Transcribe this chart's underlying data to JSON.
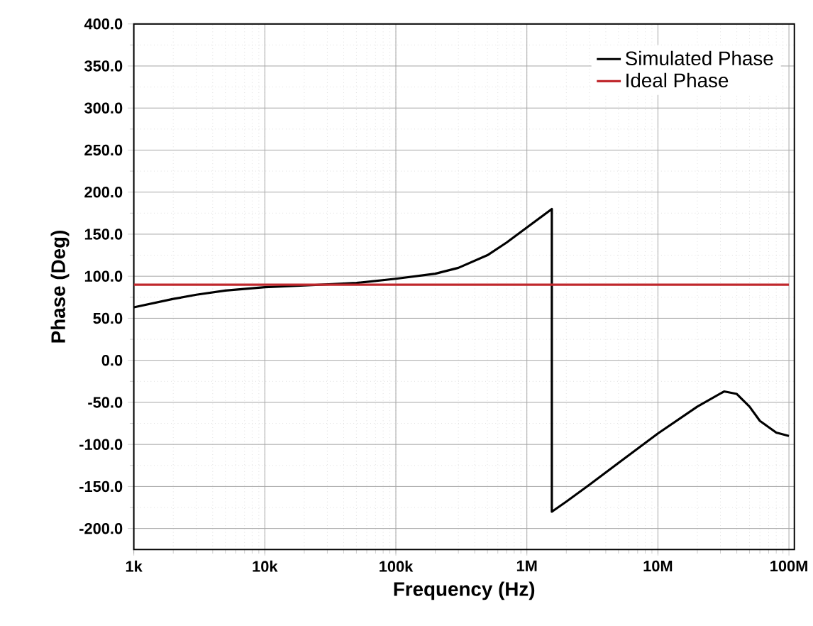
{
  "chart_data": {
    "type": "line",
    "xlabel": "Frequency (Hz)",
    "ylabel": "Phase (Deg)",
    "log": "x",
    "xlim": [
      1000,
      110000000
    ],
    "ylim": [
      -225,
      400
    ],
    "xticks": [
      {
        "value": 1000,
        "label": "1k"
      },
      {
        "value": 10000,
        "label": "10k"
      },
      {
        "value": 100000,
        "label": "100k"
      },
      {
        "value": 1000000,
        "label": "1M"
      },
      {
        "value": 10000000,
        "label": "10M"
      },
      {
        "value": 100000000,
        "label": "100M"
      }
    ],
    "yticks": [
      {
        "value": -200,
        "label": "-200.0"
      },
      {
        "value": -150,
        "label": "-150.0"
      },
      {
        "value": -100,
        "label": "-100.0"
      },
      {
        "value": -50,
        "label": "-50.0"
      },
      {
        "value": 0,
        "label": "0.0"
      },
      {
        "value": 50,
        "label": "50.0"
      },
      {
        "value": 100,
        "label": "100.0"
      },
      {
        "value": 150,
        "label": "150.0"
      },
      {
        "value": 200,
        "label": "200.0"
      },
      {
        "value": 250,
        "label": "250.0"
      },
      {
        "value": 300,
        "label": "300.0"
      },
      {
        "value": 350,
        "label": "350.0"
      },
      {
        "value": 400,
        "label": "400.0"
      }
    ],
    "grid": true,
    "legend": "top right",
    "marker": "none",
    "line_style": "solid",
    "series": [
      {
        "name": "Simulated Phase",
        "color": "#000000",
        "x": [
          1000,
          2000,
          3000,
          5000,
          10000,
          20000,
          50000,
          100000,
          200000,
          300000,
          500000,
          700000,
          1000000,
          1550000,
          1550000,
          2000000,
          3000000,
          5000000,
          10000000,
          20000000,
          32000000,
          40000000,
          50000000,
          60000000,
          80000000,
          100000000
        ],
        "values": [
          63,
          73,
          78,
          83,
          87,
          89,
          92,
          97,
          103,
          110,
          125,
          140,
          158,
          180,
          -180,
          -168,
          -148,
          -122,
          -87,
          -55,
          -37,
          -40,
          -55,
          -72,
          -86,
          -90
        ]
      },
      {
        "name": "Ideal Phase",
        "color": "#c0282d",
        "x": [
          1000,
          100000000
        ],
        "values": [
          90,
          90
        ]
      }
    ]
  }
}
